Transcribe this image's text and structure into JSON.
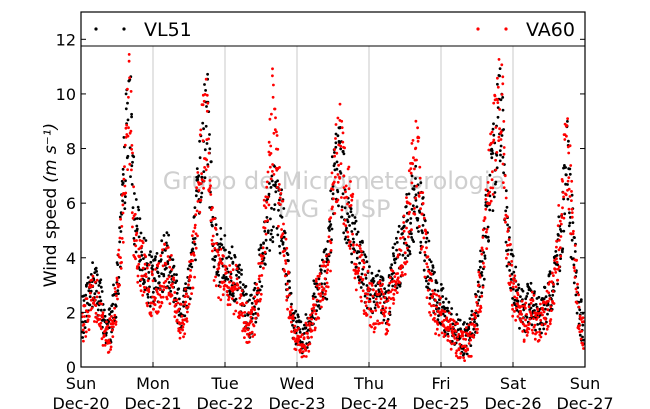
{
  "chart_data": {
    "type": "scatter",
    "title": "",
    "xlabel": "",
    "ylabel": "Wind speed",
    "ylabel_unit_html": "(m s⁻¹)",
    "ylim": [
      0,
      13
    ],
    "yticks": [
      0,
      2,
      4,
      6,
      8,
      10,
      12
    ],
    "x_day_range": [
      0,
      7
    ],
    "x_ticks": [
      {
        "day": "Sun",
        "date": "Dec-20"
      },
      {
        "day": "Mon",
        "date": "Dec-21"
      },
      {
        "day": "Tue",
        "date": "Dec-22"
      },
      {
        "day": "Wed",
        "date": "Dec-23"
      },
      {
        "day": "Thu",
        "date": "Dec-24"
      },
      {
        "day": "Fri",
        "date": "Dec-25"
      },
      {
        "day": "Sat",
        "date": "Dec-26"
      },
      {
        "day": "Sun",
        "date": "Dec-27"
      }
    ],
    "grid": "vertical",
    "legend_placement": "top",
    "watermark": [
      "Grupo de Micrometeorologia",
      "IAG - USP"
    ],
    "series": [
      {
        "name": "VL51",
        "color": "#000000",
        "marker": "dot",
        "daily_profile": [
          {
            "day_offset": 0.0,
            "values": [
              1.5,
              2.5,
              3.0,
              2.8,
              1.4,
              1.6,
              2.9,
              6.0,
              10.5,
              5.0,
              4.2,
              3.5
            ]
          },
          {
            "day_offset": 1.0,
            "values": [
              3.0,
              3.5,
              4.0,
              3.8,
              2.5,
              2.0,
              3.2,
              4.8,
              7.5,
              9.5,
              5.0,
              4.0
            ]
          },
          {
            "day_offset": 2.0,
            "values": [
              3.8,
              3.5,
              3.2,
              2.5,
              1.8,
              2.2,
              3.8,
              5.5,
              6.0,
              5.8,
              4.5,
              2.0
            ]
          },
          {
            "day_offset": 3.0,
            "values": [
              1.3,
              1.0,
              1.5,
              2.5,
              3.2,
              3.5,
              6.5,
              7.8,
              6.0,
              5.0,
              4.0,
              3.5
            ]
          },
          {
            "day_offset": 4.0,
            "values": [
              3.0,
              2.5,
              2.8,
              2.2,
              3.5,
              4.0,
              4.8,
              5.5,
              6.0,
              5.0,
              3.5,
              2.5
            ]
          },
          {
            "day_offset": 5.0,
            "values": [
              2.2,
              1.8,
              1.5,
              1.2,
              1.0,
              1.3,
              2.2,
              4.0,
              6.0,
              8.0,
              9.8,
              5.0
            ]
          },
          {
            "day_offset": 6.0,
            "values": [
              3.2,
              2.2,
              2.0,
              2.5,
              1.8,
              2.0,
              2.5,
              3.5,
              5.0,
              7.5,
              4.5,
              2.0
            ]
          },
          {
            "day_offset": 7.0,
            "values": [
              1.2
            ]
          }
        ]
      },
      {
        "name": "VA60",
        "color": "#ff0000",
        "marker": "dot",
        "daily_profile": [
          {
            "day_offset": 0.0,
            "values": [
              1.2,
              2.0,
              2.6,
              2.4,
              1.0,
              1.2,
              2.5,
              5.5,
              10.0,
              4.5,
              3.8,
              3.0
            ]
          },
          {
            "day_offset": 1.0,
            "values": [
              2.5,
              3.0,
              3.5,
              3.2,
              2.0,
              1.6,
              2.8,
              4.5,
              8.0,
              9.0,
              4.5,
              3.5
            ]
          },
          {
            "day_offset": 2.0,
            "values": [
              3.3,
              3.0,
              2.8,
              2.0,
              1.4,
              1.8,
              3.5,
              6.0,
              9.5,
              6.5,
              4.0,
              1.6
            ]
          },
          {
            "day_offset": 3.0,
            "values": [
              1.0,
              0.8,
              1.2,
              2.2,
              2.8,
              3.2,
              6.0,
              8.5,
              6.5,
              5.5,
              3.8,
              3.0
            ]
          },
          {
            "day_offset": 4.0,
            "values": [
              2.5,
              2.0,
              2.4,
              1.8,
              3.0,
              3.8,
              4.5,
              6.5,
              7.5,
              5.0,
              3.0,
              2.0
            ]
          },
          {
            "day_offset": 5.0,
            "values": [
              1.8,
              1.4,
              1.2,
              0.9,
              0.8,
              1.0,
              2.0,
              3.8,
              6.5,
              8.5,
              10.5,
              4.5
            ]
          },
          {
            "day_offset": 6.0,
            "values": [
              2.8,
              1.8,
              1.6,
              2.2,
              1.5,
              1.8,
              2.2,
              3.2,
              5.5,
              8.5,
              5.0,
              1.6
            ]
          },
          {
            "day_offset": 7.0,
            "values": [
              1.0
            ]
          }
        ]
      }
    ]
  }
}
